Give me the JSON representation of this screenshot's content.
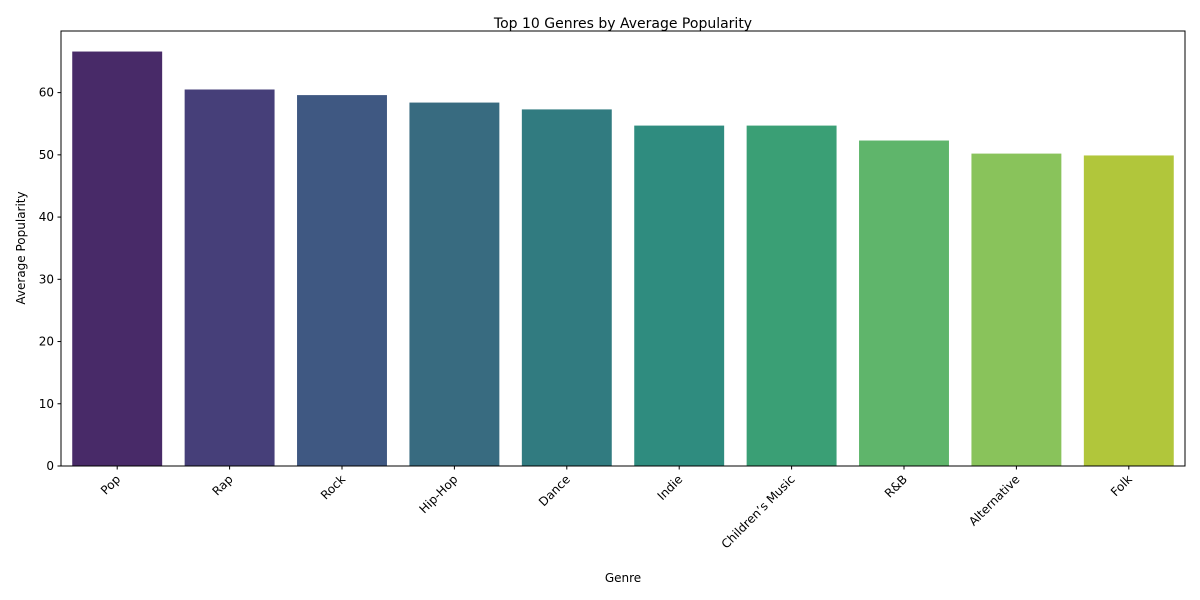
{
  "chart_data": {
    "type": "bar",
    "title": "Top 10 Genres by Average Popularity",
    "xlabel": "Genre",
    "ylabel": "Average Popularity",
    "categories": [
      "Pop",
      "Rap",
      "Rock",
      "Hip-Hop",
      "Dance",
      "Indie",
      "Children’s Music",
      "R&B",
      "Alternative",
      "Folk"
    ],
    "values": [
      66.6,
      60.5,
      59.6,
      58.4,
      57.3,
      54.7,
      54.7,
      52.3,
      50.2,
      49.9
    ],
    "colors": [
      "#482a68",
      "#463f79",
      "#3f5882",
      "#386b80",
      "#317b80",
      "#2f8c7f",
      "#3a9f75",
      "#5fb56b",
      "#89c35b",
      "#b1c63b"
    ],
    "ylim": [
      0,
      69.9
    ],
    "yticks": [
      0,
      10,
      20,
      30,
      40,
      50,
      60
    ],
    "grid": false,
    "legend": "none"
  }
}
